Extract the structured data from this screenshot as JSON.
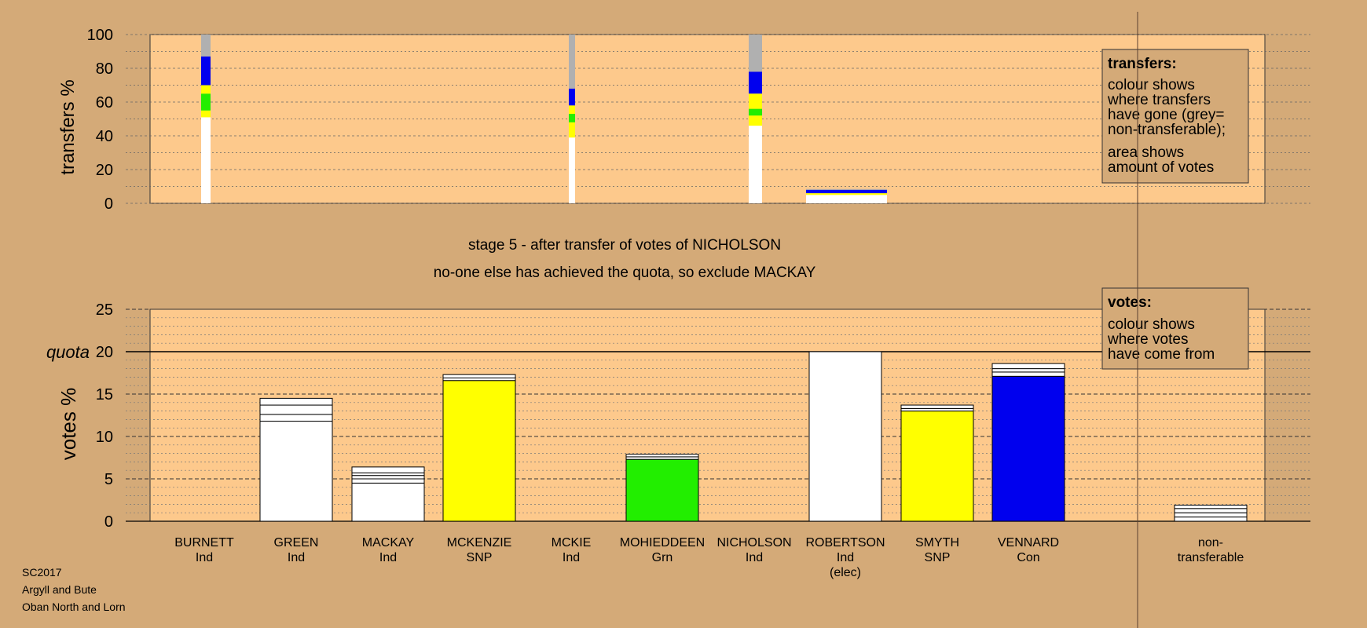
{
  "colors": {
    "background": "#d4aa78",
    "panel": "#fdc98c",
    "white": "#ffffff",
    "grey": "#b0b0b0",
    "blue": "#0000ee",
    "yellow": "#ffff00",
    "green": "#22ee00"
  },
  "stage_text": {
    "line1": "stage 5 - after transfer of votes of NICHOLSON",
    "line2": "no-one else has achieved the quota, so exclude MACKAY"
  },
  "footer": {
    "line1": "SC2017",
    "line2": "Argyll and Bute",
    "line3": "Oban North and Lorn"
  },
  "chart_data": [
    {
      "type": "bar",
      "stacked": true,
      "ylabel": "transfers %",
      "ylim": [
        0,
        100
      ],
      "yticks": [
        "0",
        "20",
        "40",
        "60",
        "80",
        "100"
      ],
      "legend": {
        "title": "transfers:",
        "lines": [
          "colour shows",
          "where transfers",
          "have gone (grey=",
          "non-transferable);",
          "area shows",
          "amount of votes"
        ],
        "placement": "top-right"
      },
      "bars": [
        {
          "candidate": "BURNETT",
          "segments": [
            {
              "color": "white",
              "value": 51
            },
            {
              "color": "yellow",
              "value": 4
            },
            {
              "color": "green",
              "value": 10
            },
            {
              "color": "yellow",
              "value": 5
            },
            {
              "color": "blue",
              "value": 17
            },
            {
              "color": "grey",
              "value": 13
            }
          ]
        },
        {
          "candidate": "MCKIE",
          "segments": [
            {
              "color": "white",
              "value": 39
            },
            {
              "color": "yellow",
              "value": 9
            },
            {
              "color": "green",
              "value": 5
            },
            {
              "color": "yellow",
              "value": 5
            },
            {
              "color": "blue",
              "value": 10
            },
            {
              "color": "grey",
              "value": 32
            }
          ]
        },
        {
          "candidate": "NICHOLSON",
          "segments": [
            {
              "color": "white",
              "value": 46
            },
            {
              "color": "yellow",
              "value": 6
            },
            {
              "color": "green",
              "value": 4
            },
            {
              "color": "yellow",
              "value": 9
            },
            {
              "color": "blue",
              "value": 13
            },
            {
              "color": "grey",
              "value": 22
            }
          ]
        },
        {
          "candidate": "ROBERTSON",
          "segments": [
            {
              "color": "white",
              "value": 5
            },
            {
              "color": "yellow",
              "value": 1
            },
            {
              "color": "blue",
              "value": 2
            },
            {
              "color": "grey",
              "value": 0.5
            }
          ]
        }
      ]
    },
    {
      "type": "bar",
      "stacked": true,
      "ylabel": "votes %",
      "ylim": [
        0,
        25
      ],
      "yticks": [
        "0",
        "5",
        "10",
        "15",
        "20",
        "25"
      ],
      "quota": {
        "label": "quota",
        "value": 20
      },
      "legend": {
        "title": "votes:",
        "lines": [
          "colour shows",
          "where votes",
          "have come from"
        ],
        "placement": "top-right"
      },
      "categories": [
        {
          "name": "BURNETT",
          "party": "Ind",
          "extra": ""
        },
        {
          "name": "GREEN",
          "party": "Ind",
          "extra": ""
        },
        {
          "name": "MACKAY",
          "party": "Ind",
          "extra": ""
        },
        {
          "name": "MCKENZIE",
          "party": "SNP",
          "extra": ""
        },
        {
          "name": "MCKIE",
          "party": "Ind",
          "extra": ""
        },
        {
          "name": "MOHIEDDEEN",
          "party": "Grn",
          "extra": ""
        },
        {
          "name": "NICHOLSON",
          "party": "Ind",
          "extra": ""
        },
        {
          "name": "ROBERTSON",
          "party": "Ind",
          "extra": "(elec)"
        },
        {
          "name": "SMYTH",
          "party": "SNP",
          "extra": ""
        },
        {
          "name": "VENNARD",
          "party": "Con",
          "extra": ""
        },
        {
          "name": "non-",
          "party": "transferable",
          "extra": ""
        }
      ],
      "bars": [
        {
          "candidate": "BURNETT",
          "segments": []
        },
        {
          "candidate": "GREEN",
          "segments": [
            11.8,
            0.8,
            1.1,
            0.8
          ]
        },
        {
          "candidate": "MACKAY",
          "segments": [
            4.5,
            0.5,
            0.4,
            0.3,
            0.7
          ]
        },
        {
          "candidate": "MCKENZIE",
          "primary_color": "yellow",
          "segments": [
            16.6,
            0.3,
            0.4
          ]
        },
        {
          "candidate": "MCKIE",
          "segments": []
        },
        {
          "candidate": "MOHIEDDEEN",
          "primary_color": "green",
          "segments": [
            7.3,
            0.3,
            0.3
          ]
        },
        {
          "candidate": "NICHOLSON",
          "segments": []
        },
        {
          "candidate": "ROBERTSON",
          "segments": [
            20
          ]
        },
        {
          "candidate": "SMYTH",
          "primary_color": "yellow",
          "segments": [
            13.0,
            0.3,
            0.4
          ]
        },
        {
          "candidate": "VENNARD",
          "primary_color": "blue",
          "segments": [
            17.1,
            0.5,
            0.4,
            0.6
          ]
        },
        {
          "candidate": "non-transferable",
          "segments": [
            0.5,
            0.5,
            0.5,
            0.4
          ]
        }
      ]
    }
  ]
}
